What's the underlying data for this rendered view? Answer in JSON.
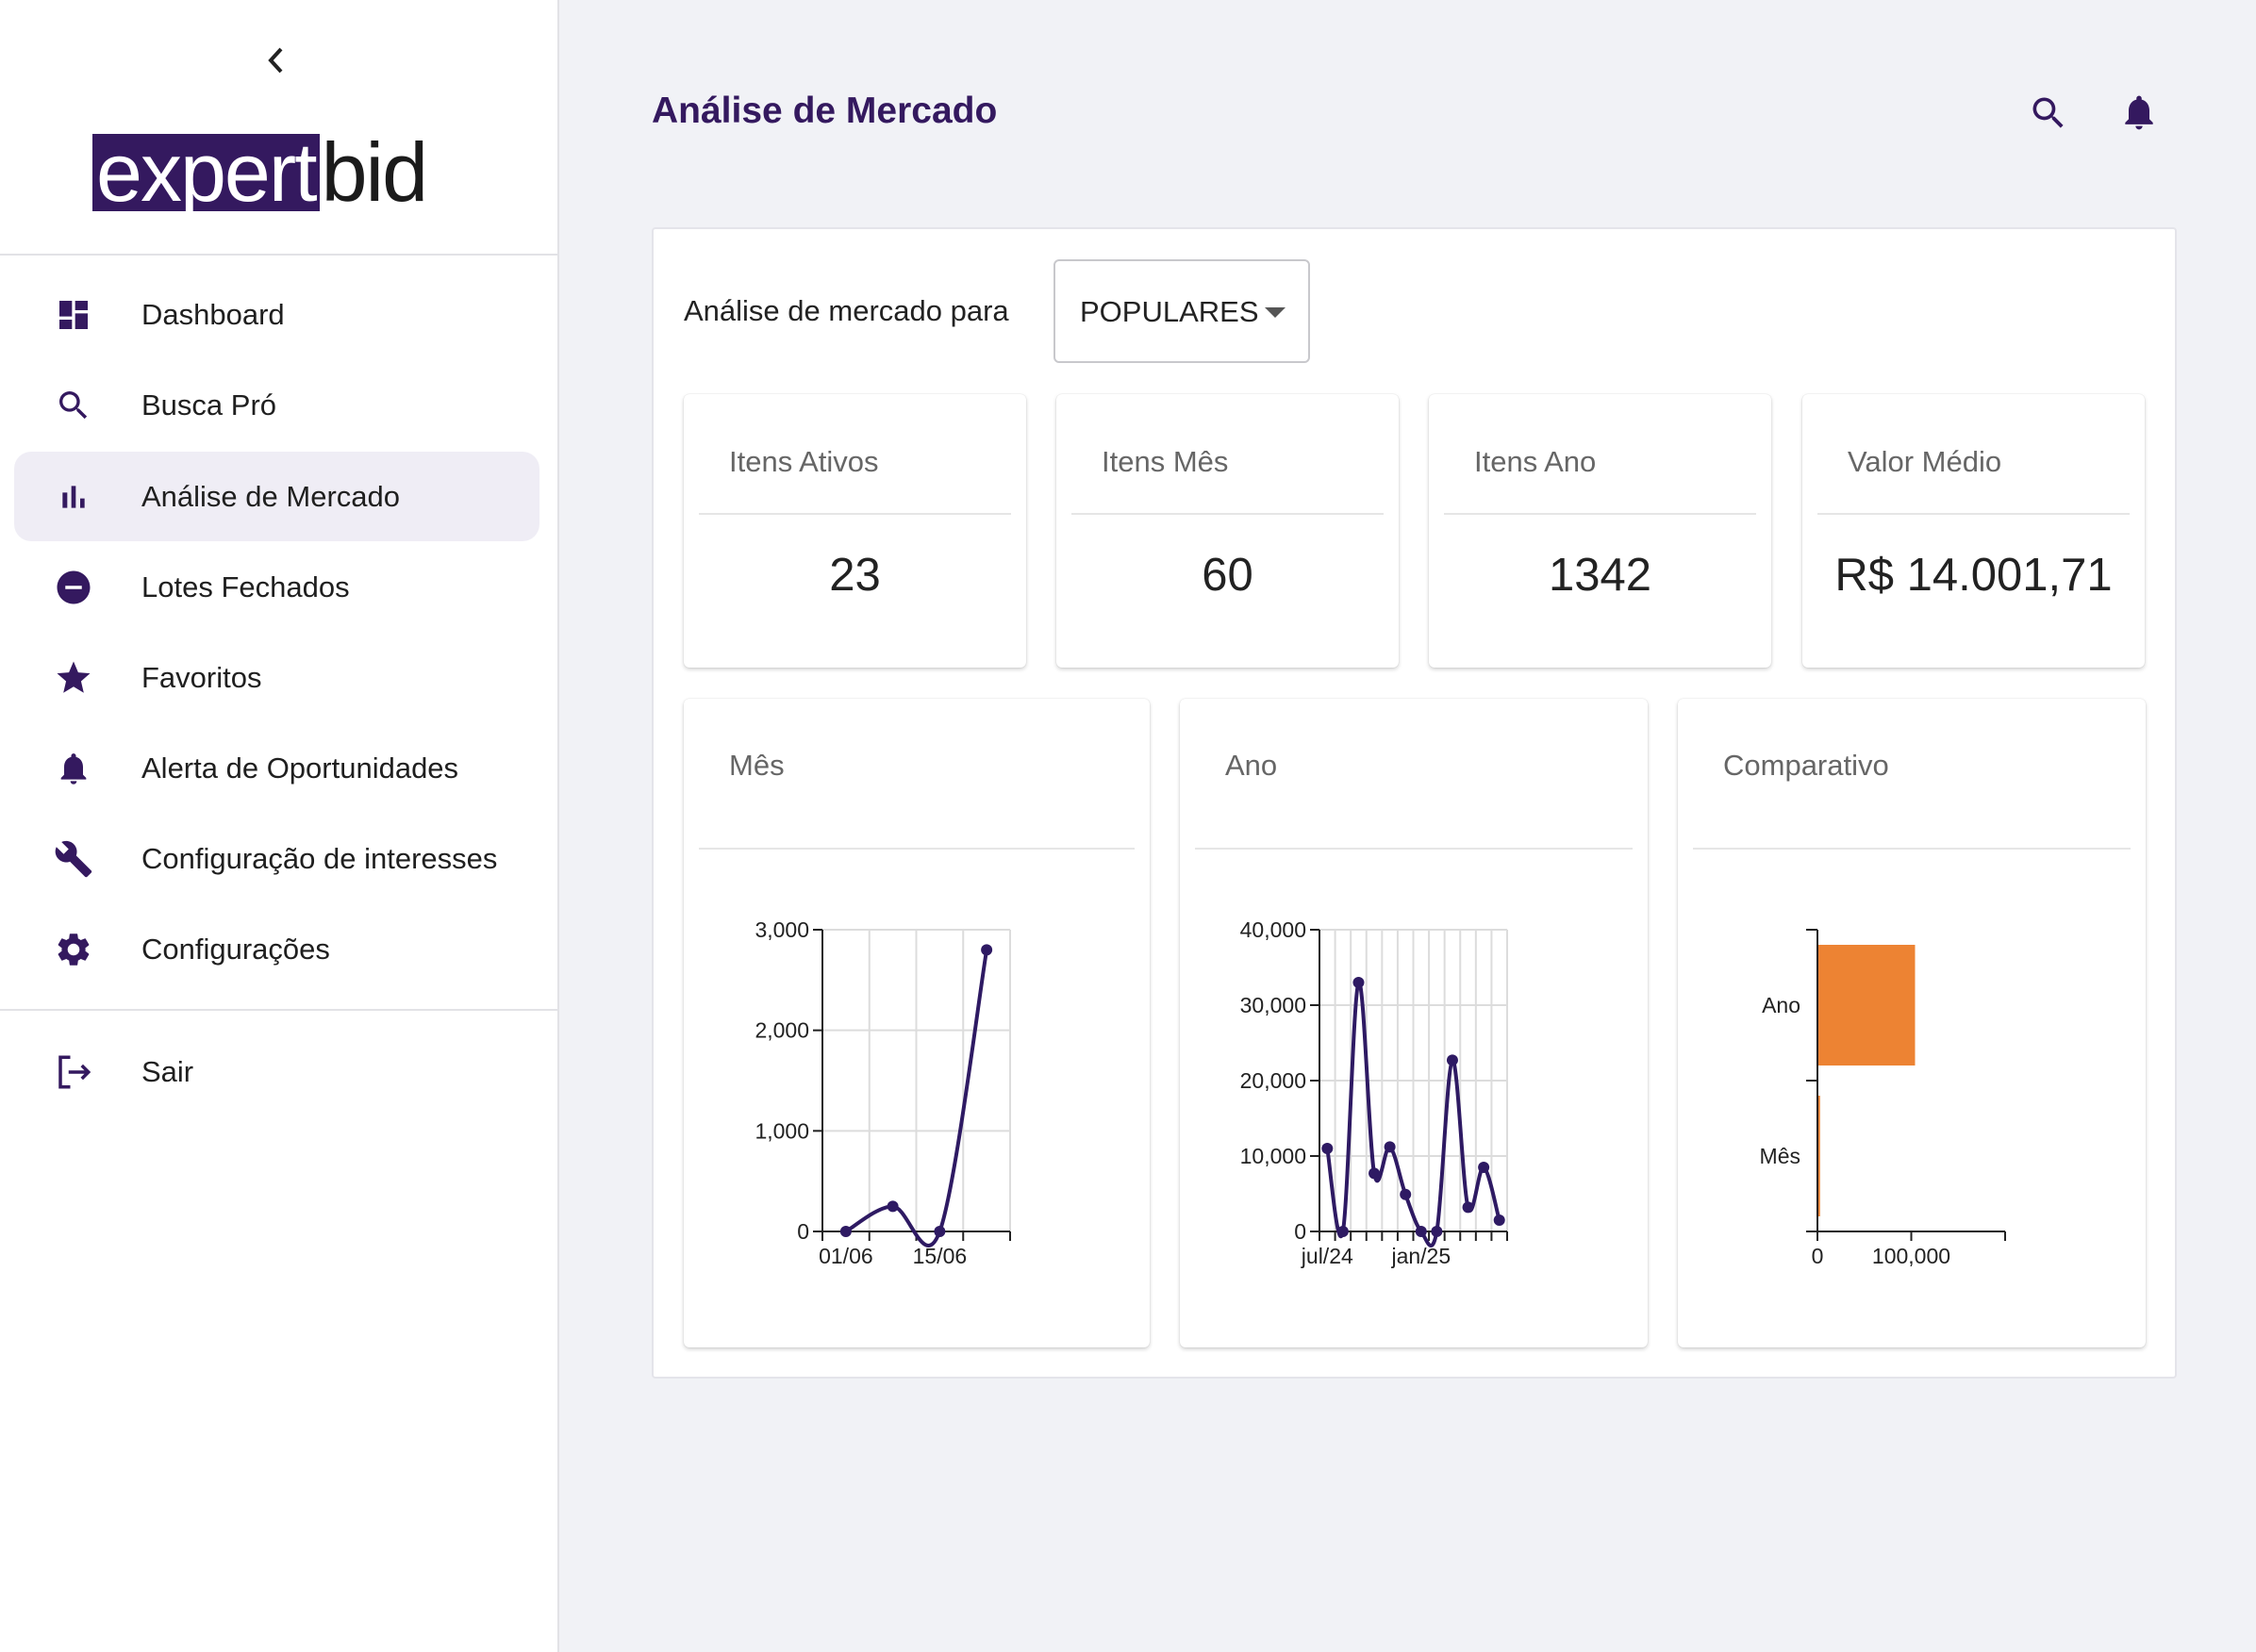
{
  "sidebar": {
    "collapse_icon": "chevron-left-icon",
    "logo": {
      "part1": "expert",
      "part2": "bid"
    },
    "items": [
      {
        "label": "Dashboard",
        "icon": "dashboard-icon"
      },
      {
        "label": "Busca Pró",
        "icon": "search-icon"
      },
      {
        "label": "Análise de Mercado",
        "icon": "bar-chart-icon",
        "active": true
      },
      {
        "label": "Lotes Fechados",
        "icon": "minus-circle-icon"
      },
      {
        "label": "Favoritos",
        "icon": "star-icon"
      },
      {
        "label": "Alerta de Oportunidades",
        "icon": "bell-icon"
      },
      {
        "label": "Configuração de interesses",
        "icon": "wrench-icon"
      },
      {
        "label": "Configurações",
        "icon": "gear-icon"
      }
    ],
    "logout": {
      "label": "Sair",
      "icon": "logout-icon"
    }
  },
  "header": {
    "title": "Análise de Mercado",
    "icons": [
      "search-icon",
      "bell-icon"
    ]
  },
  "filter": {
    "label": "Análise de mercado para",
    "selected": "POPULARES"
  },
  "stats": [
    {
      "title": "Itens Ativos",
      "value": "23"
    },
    {
      "title": "Itens Mês",
      "value": "60"
    },
    {
      "title": "Itens Ano",
      "value": "1342"
    },
    {
      "title": "Valor Médio",
      "value": "R$ 14.001,71"
    }
  ],
  "colors": {
    "brand": "#34195f",
    "line": "#2e1a63",
    "bar": "#ed8333",
    "background": "#f1f2f6"
  },
  "chart_data": [
    {
      "type": "line",
      "title": "Mês",
      "x": [
        "01/06",
        "08/06",
        "15/06",
        "22/06"
      ],
      "x_tick_labels": [
        "01/06",
        "15/06"
      ],
      "values": [
        0,
        250,
        0,
        2800
      ],
      "ylim": [
        0,
        3000
      ],
      "y_ticks": [
        "0",
        "1,000",
        "2,000",
        "3,000"
      ],
      "grid": true
    },
    {
      "type": "line",
      "title": "Ano",
      "x": [
        "jul/24",
        "ago/24",
        "set/24",
        "out/24",
        "nov/24",
        "dez/24",
        "jan/25",
        "fev/25",
        "mar/25",
        "abr/25",
        "mai/25",
        "jun/25"
      ],
      "x_tick_labels": [
        "jul/24",
        "jan/25"
      ],
      "values": [
        11000,
        0,
        33000,
        7700,
        11200,
        4900,
        0,
        0,
        22700,
        3200,
        8500,
        1500
      ],
      "ylim": [
        0,
        40000
      ],
      "y_ticks": [
        "0",
        "10,000",
        "20,000",
        "30,000",
        "40,000"
      ],
      "grid": true
    },
    {
      "type": "bar",
      "orientation": "horizontal",
      "title": "Comparativo",
      "categories": [
        "Ano",
        "Mês"
      ],
      "values": [
        104000,
        2800
      ],
      "xlim": [
        0,
        200000
      ],
      "x_ticks": [
        "0",
        "100,000"
      ],
      "grid": false
    }
  ]
}
